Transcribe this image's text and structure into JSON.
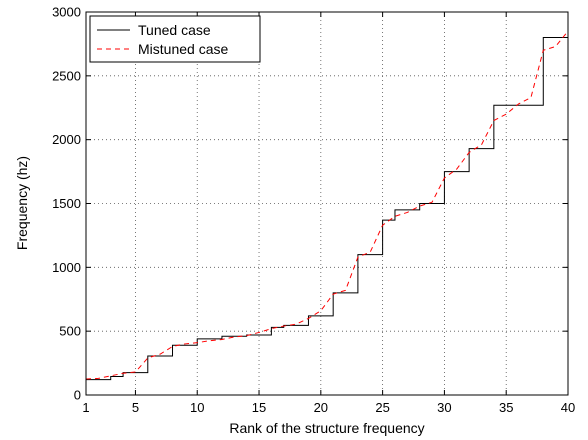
{
  "chart_data": {
    "type": "line",
    "title": "",
    "xlabel": "Rank of the structure frequency",
    "ylabel": "Frequency (hz)",
    "xlim": [
      1,
      40
    ],
    "ylim": [
      0,
      3000
    ],
    "xticks": [
      1,
      5,
      10,
      15,
      20,
      25,
      30,
      35,
      40
    ],
    "yticks": [
      0,
      500,
      1000,
      1500,
      2000,
      2500,
      3000
    ],
    "grid": true,
    "legend_position": "top-left",
    "series": [
      {
        "name": "Tuned case",
        "color": "#000000",
        "style": "solid",
        "step": true,
        "x": [
          1,
          2,
          3,
          4,
          5,
          6,
          7,
          8,
          9,
          10,
          11,
          12,
          13,
          14,
          15,
          16,
          17,
          18,
          19,
          20,
          21,
          22,
          23,
          24,
          25,
          26,
          27,
          28,
          29,
          30,
          31,
          32,
          33,
          34,
          35,
          36,
          37,
          38,
          39,
          40
        ],
        "values": [
          120,
          120,
          145,
          175,
          175,
          305,
          305,
          390,
          390,
          440,
          440,
          460,
          460,
          470,
          470,
          530,
          545,
          545,
          620,
          620,
          800,
          800,
          1100,
          1100,
          1370,
          1450,
          1450,
          1500,
          1500,
          1750,
          1750,
          1930,
          1930,
          2270,
          2270,
          2270,
          2270,
          2800,
          2800,
          3000
        ]
      },
      {
        "name": "Mistuned case",
        "color": "#ff0000",
        "style": "dashed",
        "step": false,
        "x": [
          1,
          2,
          3,
          4,
          5,
          6,
          7,
          8,
          9,
          10,
          11,
          12,
          13,
          14,
          15,
          16,
          17,
          18,
          19,
          20,
          21,
          22,
          23,
          24,
          25,
          26,
          27,
          28,
          29,
          30,
          31,
          32,
          33,
          34,
          35,
          36,
          37,
          38,
          39,
          40
        ],
        "values": [
          125,
          130,
          150,
          170,
          180,
          290,
          320,
          380,
          400,
          410,
          425,
          435,
          455,
          465,
          490,
          520,
          540,
          555,
          600,
          660,
          790,
          820,
          1080,
          1120,
          1330,
          1400,
          1430,
          1480,
          1510,
          1700,
          1770,
          1900,
          1960,
          2150,
          2200,
          2280,
          2330,
          2700,
          2730,
          2850
        ]
      }
    ]
  }
}
